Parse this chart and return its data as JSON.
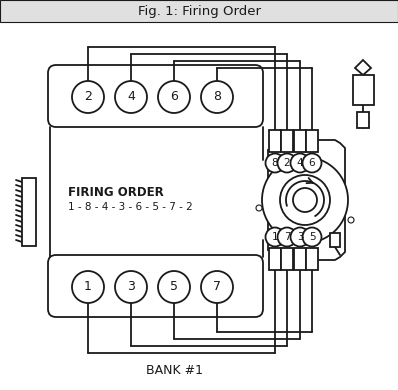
{
  "title": "Fig. 1: Firing Order",
  "bg_color": "#ebebeb",
  "diagram_bg": "#ffffff",
  "line_color": "#1a1a1a",
  "title_bar_color": "#e0e0e0",
  "firing_order_text": "FIRING ORDER",
  "firing_order_seq": "1 - 8 - 4 - 3 - 6 - 5 - 7 - 2",
  "bank1_label": "BANK #1",
  "bank2_cylinders": [
    "2",
    "4",
    "6",
    "8"
  ],
  "bank1_cylinders": [
    "1",
    "3",
    "5",
    "7"
  ],
  "dist_top_labels": [
    "8",
    "2",
    "4",
    "6"
  ],
  "dist_bot_labels": [
    "1",
    "7",
    "3",
    "5"
  ]
}
